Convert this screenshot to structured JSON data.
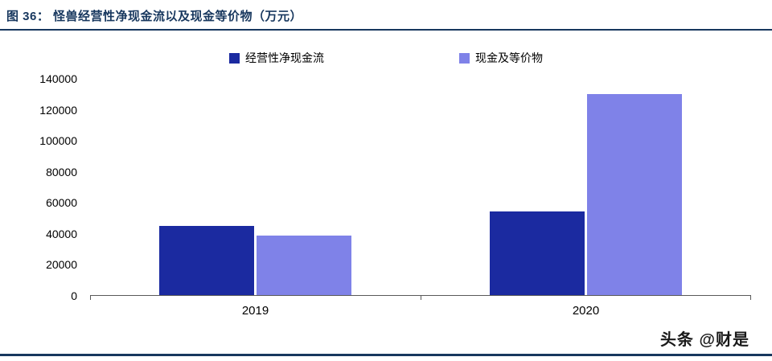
{
  "header": {
    "title": "图 36：  怪兽经营性净现金流以及现金等价物（万元）"
  },
  "watermark": "头条 @财是",
  "colors": {
    "accent": "#17375E",
    "series_operating_cashflow": "#1B2AA0",
    "series_cash_equivalents": "#7F82E8"
  },
  "chart_data": {
    "type": "bar",
    "title": "怪兽经营性净现金流以及现金等价物（万元）",
    "categories": [
      "2019",
      "2020"
    ],
    "series": [
      {
        "name": "经营性净现金流",
        "color": "#1B2AA0",
        "values": [
          45000,
          54000
        ]
      },
      {
        "name": "现金及等价物",
        "color": "#7F82E8",
        "values": [
          38500,
          130000
        ]
      }
    ],
    "xlabel": "",
    "ylabel": "",
    "ylim": [
      0,
      140000
    ],
    "yticks": [
      0,
      20000,
      40000,
      60000,
      80000,
      100000,
      120000,
      140000
    ],
    "grid": false,
    "legend_position": "top-center"
  }
}
